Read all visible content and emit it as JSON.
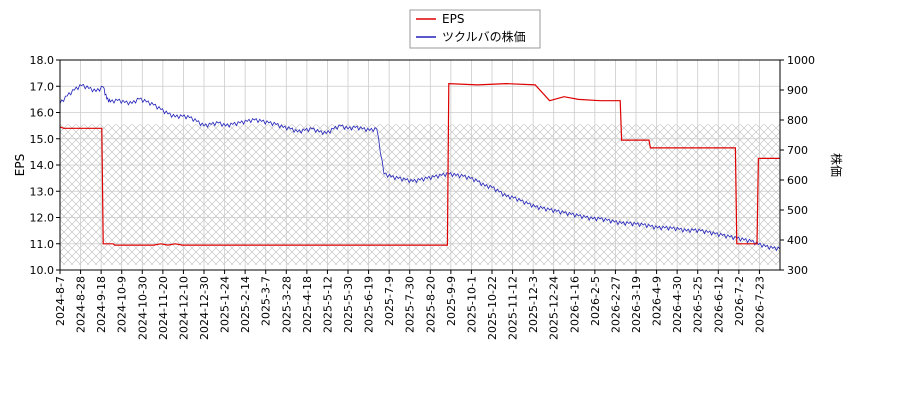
{
  "chart_data": {
    "type": "line",
    "xlabel": "",
    "x_ticks": [
      "2024-8-7",
      "2024-8-28",
      "2024-9-18",
      "2024-10-9",
      "2024-10-30",
      "2024-11-20",
      "2024-12-10",
      "2024-12-30",
      "2025-1-24",
      "2025-2-14",
      "2025-3-7",
      "2025-3-28",
      "2025-4-18",
      "2025-5-12",
      "2025-5-30",
      "2025-6-19",
      "2025-7-9",
      "2025-7-30",
      "2025-8-20",
      "2025-9-9",
      "2025-10-1",
      "2025-10-22",
      "2025-11-12",
      "2025-12-3",
      "2025-12-24",
      "2026-1-16",
      "2026-2-5",
      "2026-2-27",
      "2026-3-19",
      "2026-4-9",
      "2026-4-30",
      "2026-5-25",
      "2026-6-12",
      "2026-7-2",
      "2026-7-23"
    ],
    "y_left": {
      "label": "EPS",
      "min": 10.0,
      "max": 18.0,
      "ticks": [
        "10.0",
        "11.0",
        "12.0",
        "13.0",
        "14.0",
        "15.0",
        "16.0",
        "17.0",
        "18.0"
      ]
    },
    "y_right": {
      "label": "株価",
      "min": 300,
      "max": 1000,
      "ticks": [
        "300",
        "400",
        "500",
        "600",
        "700",
        "800",
        "900",
        "1000"
      ]
    },
    "legend": {
      "placement": "top-center",
      "items": [
        "EPS",
        "ツクルバの株価"
      ]
    },
    "grid": true,
    "hatch_band": {
      "from_eps": 10.2,
      "to_eps": 15.55
    },
    "series": [
      {
        "name": "EPS",
        "axis": "left",
        "color": "#dd0000",
        "points": [
          [
            0,
            15.45
          ],
          [
            0.5,
            15.4
          ],
          [
            5.8,
            15.4
          ],
          [
            6,
            11.0
          ],
          [
            7.4,
            11.0
          ],
          [
            7.6,
            10.95
          ],
          [
            13,
            10.95
          ],
          [
            14,
            11.0
          ],
          [
            15,
            10.95
          ],
          [
            16,
            11.0
          ],
          [
            17,
            10.95
          ],
          [
            34,
            10.95
          ],
          [
            53.8,
            10.95
          ],
          [
            54,
            17.1
          ],
          [
            58,
            17.05
          ],
          [
            62,
            17.1
          ],
          [
            66,
            17.05
          ],
          [
            68,
            16.45
          ],
          [
            70,
            16.6
          ],
          [
            72,
            16.5
          ],
          [
            75,
            16.45
          ],
          [
            77.8,
            16.45
          ],
          [
            78,
            14.95
          ],
          [
            81.8,
            14.95
          ],
          [
            82,
            14.65
          ],
          [
            93.8,
            14.65
          ],
          [
            94,
            11.0
          ],
          [
            96.8,
            11.0
          ],
          [
            97,
            14.25
          ],
          [
            100,
            14.25
          ]
        ]
      },
      {
        "name": "ツクルバの株価",
        "axis": "right",
        "color": "#2222bb",
        "points": [
          [
            0,
            855
          ],
          [
            1,
            880
          ],
          [
            2,
            900
          ],
          [
            3,
            915
          ],
          [
            4,
            905
          ],
          [
            5,
            895
          ],
          [
            6,
            910
          ],
          [
            6.5,
            870
          ],
          [
            7,
            860
          ],
          [
            8,
            865
          ],
          [
            9,
            858
          ],
          [
            10,
            855
          ],
          [
            11,
            870
          ],
          [
            12,
            860
          ],
          [
            13,
            850
          ],
          [
            14,
            835
          ],
          [
            15,
            820
          ],
          [
            16,
            810
          ],
          [
            17,
            812
          ],
          [
            18,
            808
          ],
          [
            19,
            795
          ],
          [
            20,
            780
          ],
          [
            21,
            785
          ],
          [
            22,
            790
          ],
          [
            23,
            780
          ],
          [
            24,
            785
          ],
          [
            25,
            790
          ],
          [
            26,
            795
          ],
          [
            27,
            800
          ],
          [
            28,
            795
          ],
          [
            29,
            790
          ],
          [
            30,
            785
          ],
          [
            31,
            775
          ],
          [
            32,
            770
          ],
          [
            33,
            760
          ],
          [
            34,
            765
          ],
          [
            35,
            770
          ],
          [
            36,
            760
          ],
          [
            37,
            755
          ],
          [
            38,
            770
          ],
          [
            39,
            780
          ],
          [
            40,
            770
          ],
          [
            41,
            775
          ],
          [
            42,
            770
          ],
          [
            43,
            765
          ],
          [
            44,
            770
          ],
          [
            45,
            620
          ],
          [
            46,
            610
          ],
          [
            47,
            605
          ],
          [
            48,
            600
          ],
          [
            49,
            595
          ],
          [
            50,
            600
          ],
          [
            51,
            605
          ],
          [
            52,
            610
          ],
          [
            53,
            615
          ],
          [
            54,
            620
          ],
          [
            55,
            615
          ],
          [
            56,
            612
          ],
          [
            57,
            605
          ],
          [
            58,
            595
          ],
          [
            59,
            580
          ],
          [
            60,
            575
          ],
          [
            61,
            560
          ],
          [
            62,
            545
          ],
          [
            63,
            540
          ],
          [
            64,
            530
          ],
          [
            65,
            520
          ],
          [
            66,
            510
          ],
          [
            67,
            505
          ],
          [
            68,
            500
          ],
          [
            69,
            495
          ],
          [
            70,
            490
          ],
          [
            71,
            485
          ],
          [
            72,
            480
          ],
          [
            73,
            475
          ],
          [
            74,
            470
          ],
          [
            75,
            470
          ],
          [
            76,
            465
          ],
          [
            77,
            460
          ],
          [
            78,
            455
          ],
          [
            79,
            455
          ],
          [
            80,
            452
          ],
          [
            81,
            450
          ],
          [
            82,
            445
          ],
          [
            83,
            440
          ],
          [
            84,
            440
          ],
          [
            85,
            438
          ],
          [
            86,
            435
          ],
          [
            87,
            430
          ],
          [
            88,
            432
          ],
          [
            89,
            430
          ],
          [
            90,
            425
          ],
          [
            91,
            420
          ],
          [
            92,
            415
          ],
          [
            93,
            410
          ],
          [
            94,
            405
          ],
          [
            95,
            400
          ],
          [
            96,
            395
          ],
          [
            97,
            385
          ],
          [
            98,
            378
          ],
          [
            99,
            372
          ],
          [
            100,
            370
          ]
        ]
      }
    ]
  }
}
